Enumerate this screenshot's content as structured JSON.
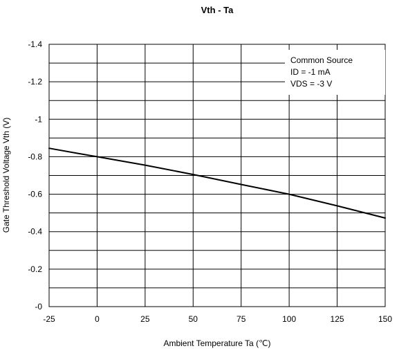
{
  "chart_data": {
    "type": "line",
    "title": "Vth - Ta",
    "xlabel": "Ambient Temperature  Ta (℃)",
    "ylabel": "Gate Threshold Voltage Vth  (V)",
    "xlim": [
      -25,
      150
    ],
    "ylim": [
      0,
      -1.4
    ],
    "y_axis_inverted": true,
    "grid": true,
    "x_ticks": [
      -25,
      0,
      25,
      50,
      75,
      100,
      125,
      150
    ],
    "x_tick_labels": [
      "-25",
      "0",
      "25",
      "50",
      "75",
      "100",
      "125",
      "150"
    ],
    "y_ticks": [
      -1.4,
      -1.2,
      -1,
      -0.8,
      -0.6,
      -0.4,
      -0.2,
      0
    ],
    "y_tick_labels": [
      "-1.4",
      "-1.2",
      "-1",
      "-0.8",
      "-0.6",
      "-0.4",
      "-0.2",
      "-0"
    ],
    "y_minor_grid_step": 0.1,
    "annotation": {
      "lines": [
        "Common Source",
        "ID = -1 mA",
        "VDS = -3 V"
      ],
      "placement": "top-right"
    },
    "series": [
      {
        "x": [
          -25,
          -10,
          0,
          25,
          50,
          75,
          100,
          125,
          150
        ],
        "y": [
          -0.845,
          -0.818,
          -0.8,
          -0.755,
          -0.705,
          -0.652,
          -0.6,
          -0.538,
          -0.473
        ],
        "color": "#000000"
      }
    ]
  }
}
